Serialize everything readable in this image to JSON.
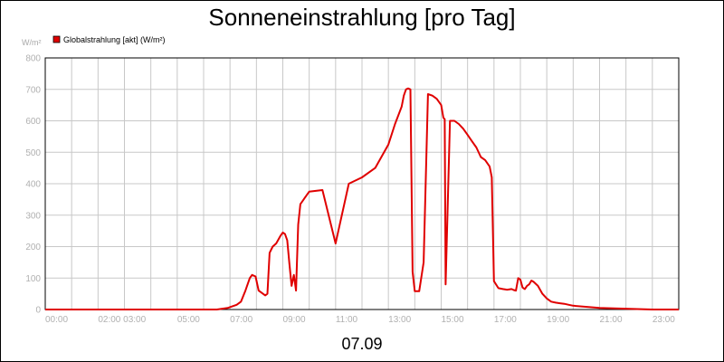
{
  "chart_data": {
    "type": "line",
    "title": "Sonneneinstrahlung [pro Tag]",
    "unit_label": "W/m²",
    "xlabel": "07.09",
    "series_color": "#e00000",
    "grid": true,
    "legend_position": "top-left",
    "ylim": [
      0,
      800
    ],
    "xlim": [
      "00:00",
      "24:00"
    ],
    "y_ticks": [
      "0",
      "100",
      "200",
      "300",
      "400",
      "500",
      "600",
      "700",
      "800"
    ],
    "x_ticks": [
      "00:00",
      "02:00 03:00",
      "05:00",
      "07:00",
      "09:00",
      "11:00",
      "13:00",
      "15:00",
      "17:00",
      "19:00",
      "21:00",
      "23:00"
    ],
    "series": [
      {
        "name": "Globalstrahlung [akt] (W/m²)",
        "x": [
          "00:00",
          "06:30",
          "06:55",
          "07:15",
          "07:25",
          "07:35",
          "07:45",
          "07:50",
          "07:58",
          "08:05",
          "08:20",
          "08:25",
          "08:30",
          "08:37",
          "08:45",
          "08:55",
          "09:00",
          "09:05",
          "09:10",
          "09:15",
          "09:20",
          "09:25",
          "09:30",
          "09:35",
          "09:40",
          "09:45",
          "09:50",
          "10:00",
          "10:30",
          "11:00",
          "11:30",
          "12:00",
          "12:30",
          "13:00",
          "13:15",
          "13:30",
          "13:35",
          "13:40",
          "13:45",
          "13:50",
          "13:55",
          "14:00",
          "14:05",
          "14:10",
          "14:20",
          "14:30",
          "14:40",
          "14:50",
          "15:00",
          "15:03",
          "15:05",
          "15:08",
          "15:10",
          "15:20",
          "15:30",
          "15:40",
          "15:50",
          "16:00",
          "16:10",
          "16:20",
          "16:30",
          "16:40",
          "16:50",
          "16:53",
          "16:55",
          "17:00",
          "17:10",
          "17:20",
          "17:30",
          "17:40",
          "17:45",
          "17:50",
          "17:55",
          "18:00",
          "18:05",
          "18:10",
          "18:15",
          "18:20",
          "18:25",
          "18:30",
          "18:40",
          "18:50",
          "19:00",
          "19:10",
          "19:20",
          "19:30",
          "19:40",
          "19:50",
          "20:00",
          "21:00",
          "23:00",
          "24:00"
        ],
        "y": [
          0,
          0,
          5,
          15,
          25,
          60,
          100,
          110,
          105,
          60,
          45,
          50,
          180,
          200,
          210,
          235,
          245,
          240,
          220,
          145,
          75,
          110,
          60,
          270,
          335,
          345,
          355,
          375,
          380,
          210,
          400,
          420,
          450,
          525,
          590,
          645,
          680,
          700,
          703,
          700,
          120,
          58,
          58,
          58,
          150,
          685,
          680,
          670,
          650,
          625,
          610,
          605,
          80,
          600,
          600,
          590,
          575,
          555,
          535,
          515,
          485,
          475,
          455,
          435,
          420,
          90,
          68,
          65,
          63,
          65,
          62,
          60,
          100,
          95,
          70,
          65,
          75,
          80,
          92,
          88,
          75,
          50,
          35,
          25,
          22,
          20,
          18,
          15,
          12,
          5,
          0,
          0
        ]
      }
    ]
  }
}
